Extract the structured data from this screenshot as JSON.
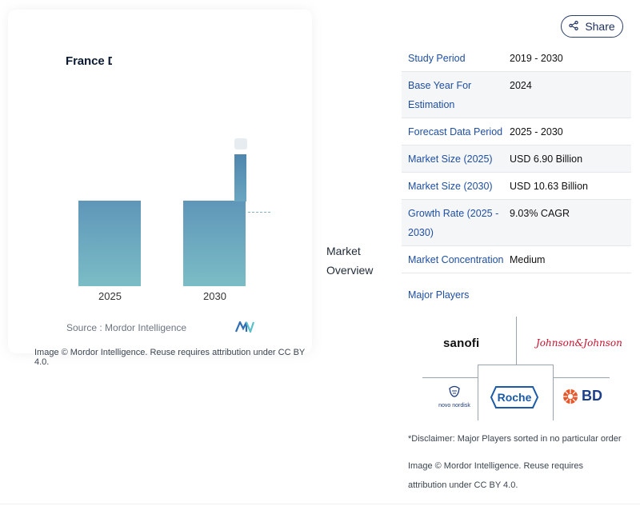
{
  "share": {
    "label": "Share"
  },
  "chart_data": {
    "type": "bar",
    "title": "France D                                 arket",
    "categories": [
      "2025",
      "2030"
    ],
    "values": [
      6.9,
      10.63
    ],
    "ylim": [
      0,
      12
    ]
  },
  "chart": {
    "source": "Source :  Mordor Intelligence",
    "attribution": "Image © Mordor Intelligence. Reuse requires attribution under CC BY 4.0."
  },
  "overview": {
    "line1": "Market",
    "line2": "Overview"
  },
  "table": {
    "rows": [
      {
        "key": "Study Period",
        "value": "2019 - 2030"
      },
      {
        "key": "Base Year For Estimation",
        "value": "2024"
      },
      {
        "key": "Forecast Data Period",
        "value": "2025 - 2030"
      },
      {
        "key": "Market Size (2025)",
        "value": "USD 6.90 Billion"
      },
      {
        "key": "Market Size (2030)",
        "value": "USD 10.63 Billion"
      },
      {
        "key": "Growth Rate (2025 - 2030)",
        "value": "9.03% CAGR"
      },
      {
        "key": "Market Concentration",
        "value": "Medium"
      }
    ],
    "players_label": "Major Players"
  },
  "players": {
    "sanofi": "sanofi",
    "jnj": "Johnson&Johnson",
    "novo": "novo nordisk",
    "roche": "Roche",
    "bd": "BD"
  },
  "footer": {
    "disclaimer": "*Disclaimer: Major Players sorted in no particular order",
    "attribution": "Image © Mordor Intelligence. Reuse requires attribution under CC BY 4.0."
  },
  "colors": {
    "accent": "#1f4fa0",
    "bar": "#6aa6c0"
  }
}
